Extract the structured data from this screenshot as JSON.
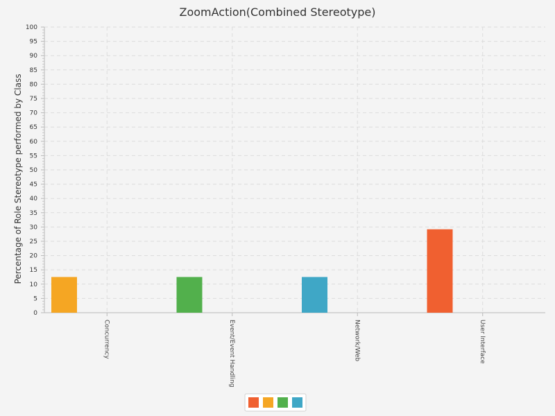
{
  "chart_data": {
    "type": "bar",
    "title": "ZoomAction(Combined Stereotype)",
    "ylabel": "Percentage of Role Stereotype performed by Class",
    "xlabel": "",
    "ylim": [
      0,
      100
    ],
    "ytick_step": 5,
    "grid": true,
    "legend_position": "bottom-center",
    "categories": [
      "Concurrency",
      "Event/Event Handling",
      "Network/Web",
      "User Interface"
    ],
    "series": [
      {
        "color": "#f06030",
        "values": [
          0,
          0,
          0,
          29.2
        ]
      },
      {
        "color": "#f5a623",
        "values": [
          12.5,
          0,
          0,
          0
        ]
      },
      {
        "color": "#52b04c",
        "values": [
          0,
          12.5,
          0,
          0
        ]
      },
      {
        "color": "#3fa7c6",
        "values": [
          0,
          0,
          12.5,
          0
        ]
      }
    ]
  }
}
